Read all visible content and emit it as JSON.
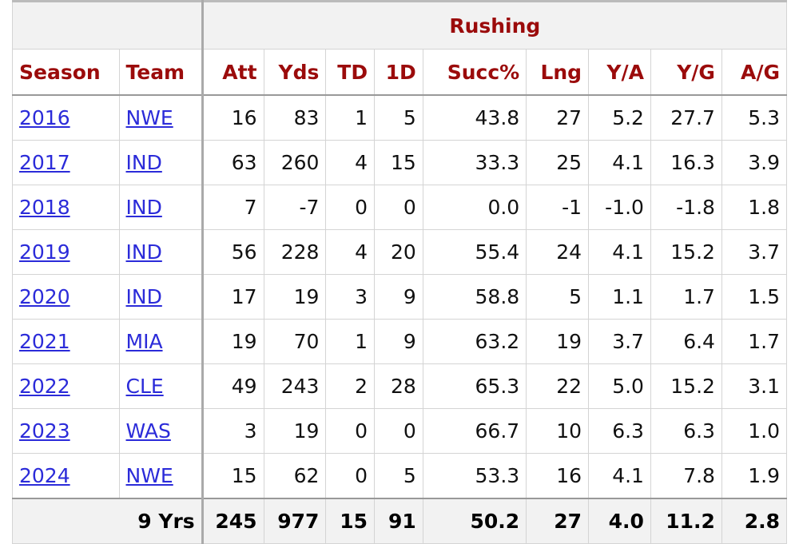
{
  "header": {
    "group": "Rushing",
    "columns": [
      "Season",
      "Team",
      "Att",
      "Yds",
      "TD",
      "1D",
      "Succ%",
      "Lng",
      "Y/A",
      "Y/G",
      "A/G"
    ]
  },
  "rows": [
    {
      "season": "2016",
      "team": "NWE",
      "stats": [
        "16",
        "83",
        "1",
        "5",
        "43.8",
        "27",
        "5.2",
        "27.7",
        "5.3"
      ]
    },
    {
      "season": "2017",
      "team": "IND",
      "stats": [
        "63",
        "260",
        "4",
        "15",
        "33.3",
        "25",
        "4.1",
        "16.3",
        "3.9"
      ]
    },
    {
      "season": "2018",
      "team": "IND",
      "stats": [
        "7",
        "-7",
        "0",
        "0",
        "0.0",
        "-1",
        "-1.0",
        "-1.8",
        "1.8"
      ]
    },
    {
      "season": "2019",
      "team": "IND",
      "stats": [
        "56",
        "228",
        "4",
        "20",
        "55.4",
        "24",
        "4.1",
        "15.2",
        "3.7"
      ]
    },
    {
      "season": "2020",
      "team": "IND",
      "stats": [
        "17",
        "19",
        "3",
        "9",
        "58.8",
        "5",
        "1.1",
        "1.7",
        "1.5"
      ]
    },
    {
      "season": "2021",
      "team": "MIA",
      "stats": [
        "19",
        "70",
        "1",
        "9",
        "63.2",
        "19",
        "3.7",
        "6.4",
        "1.7"
      ]
    },
    {
      "season": "2022",
      "team": "CLE",
      "stats": [
        "49",
        "243",
        "2",
        "28",
        "65.3",
        "22",
        "5.0",
        "15.2",
        "3.1"
      ]
    },
    {
      "season": "2023",
      "team": "WAS",
      "stats": [
        "3",
        "19",
        "0",
        "0",
        "66.7",
        "10",
        "6.3",
        "6.3",
        "1.0"
      ]
    },
    {
      "season": "2024",
      "team": "NWE",
      "stats": [
        "15",
        "62",
        "0",
        "5",
        "53.3",
        "16",
        "4.1",
        "7.8",
        "1.9"
      ]
    }
  ],
  "footer": {
    "label": "9 Yrs",
    "stats": [
      "245",
      "977",
      "15",
      "91",
      "50.2",
      "27",
      "4.0",
      "11.2",
      "2.8"
    ]
  }
}
